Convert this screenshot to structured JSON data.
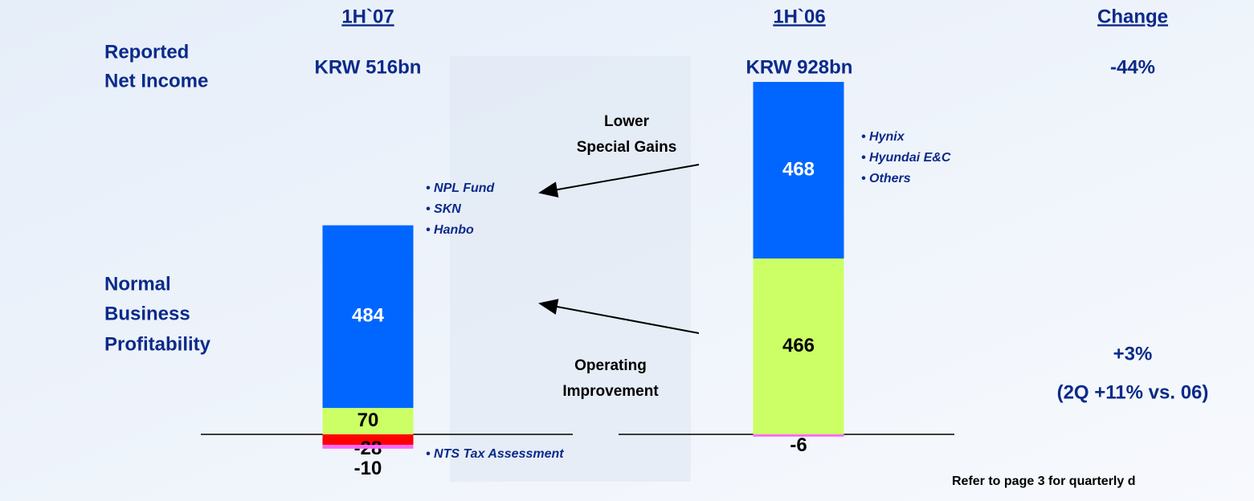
{
  "chart_data": {
    "type": "bar",
    "stacked": true,
    "categories": [
      "1H`07",
      "1H`06"
    ],
    "change_header": "Change",
    "row_labels": [
      [
        "Reported",
        "Net Income"
      ],
      [
        "Normal",
        "Business",
        "Profitability"
      ]
    ],
    "net_income": [
      "KRW 516bn",
      "KRW 928bn"
    ],
    "net_income_change": "-44%",
    "normal_change": "+3%",
    "normal_change_note": "(2Q +11% vs. 06)",
    "series": [
      {
        "color": "#ccff66",
        "label_color": "#000000",
        "values": [
          70,
          466
        ]
      },
      {
        "color": "#0066ff",
        "label_color": "#ffffff",
        "values": [
          484,
          468
        ]
      },
      {
        "color": "#ff0000",
        "label_color": "#000000",
        "values": [
          -28,
          null
        ]
      },
      {
        "color": "#ff66ff",
        "label_color": "#000000",
        "values": [
          -10,
          -6
        ]
      }
    ],
    "gain_items": [
      [
        "• NPL Fund",
        "• SKN",
        "• Hanbo"
      ],
      [
        "• Hynix",
        "• Hyundai E&C",
        "• Others"
      ]
    ],
    "arrow_labels": [
      [
        "Lower",
        "Special Gains"
      ],
      [
        "Operating",
        "Improvement"
      ]
    ],
    "tax_note": "• NTS Tax Assessment",
    "footnote": "Refer to page 3 for quarterly d"
  }
}
